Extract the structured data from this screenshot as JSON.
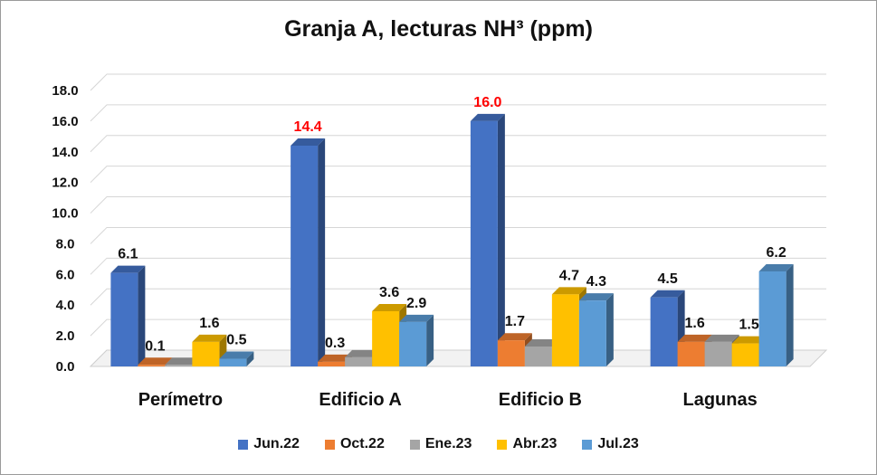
{
  "chart_data": {
    "type": "bar",
    "title": "Granja A, lecturas NH³ (ppm)",
    "categories": [
      "Perímetro",
      "Edificio A",
      "Edificio B",
      "Lagunas"
    ],
    "series": [
      {
        "name": "Jun.22",
        "color": "#4472C4",
        "values": [
          6.1,
          14.4,
          16.0,
          4.5
        ]
      },
      {
        "name": "Oct.22",
        "color": "#ED7D31",
        "values": [
          0.1,
          0.3,
          1.7,
          1.6
        ]
      },
      {
        "name": "Ene.23",
        "color": "#A5A5A5",
        "values": [
          0.1,
          0.6,
          1.3,
          1.6
        ]
      },
      {
        "name": "Abr.23",
        "color": "#FFC000",
        "values": [
          1.6,
          3.6,
          4.7,
          1.5
        ]
      },
      {
        "name": "Jul.23",
        "color": "#5B9BD5",
        "values": [
          0.5,
          2.9,
          4.3,
          6.2
        ]
      }
    ],
    "data_labels": [
      {
        "category": "Perímetro",
        "series": "Jun.22",
        "text": "6.1"
      },
      {
        "category": "Perímetro",
        "series": "Oct.22",
        "text": "0.1"
      },
      {
        "category": "Perímetro",
        "series": "Abr.23",
        "text": "1.6"
      },
      {
        "category": "Perímetro",
        "series": "Jul.23",
        "text": "0.5"
      },
      {
        "category": "Edificio A",
        "series": "Jun.22",
        "text": "14.4",
        "highlight": true
      },
      {
        "category": "Edificio A",
        "series": "Oct.22",
        "text": "0.3"
      },
      {
        "category": "Edificio A",
        "series": "Abr.23",
        "text": "3.6"
      },
      {
        "category": "Edificio A",
        "series": "Jul.23",
        "text": "2.9"
      },
      {
        "category": "Edificio B",
        "series": "Jun.22",
        "text": "16.0",
        "highlight": true
      },
      {
        "category": "Edificio B",
        "series": "Oct.22",
        "text": "1.7"
      },
      {
        "category": "Edificio B",
        "series": "Abr.23",
        "text": "4.7"
      },
      {
        "category": "Edificio B",
        "series": "Jul.23",
        "text": "4.3"
      },
      {
        "category": "Lagunas",
        "series": "Jun.22",
        "text": "4.5"
      },
      {
        "category": "Lagunas",
        "series": "Oct.22",
        "text": "1.6"
      },
      {
        "category": "Lagunas",
        "series": "Abr.23",
        "text": "1.5"
      },
      {
        "category": "Lagunas",
        "series": "Jul.23",
        "text": "6.2"
      }
    ],
    "highlight_color": "#FF0000",
    "y_ticks": [
      "0.0",
      "2.0",
      "4.0",
      "6.0",
      "8.0",
      "10.0",
      "12.0",
      "14.0",
      "16.0",
      "18.0"
    ],
    "ylim": [
      0,
      18
    ],
    "grid": true,
    "legend_position": "bottom",
    "xlabel": "",
    "ylabel": ""
  }
}
